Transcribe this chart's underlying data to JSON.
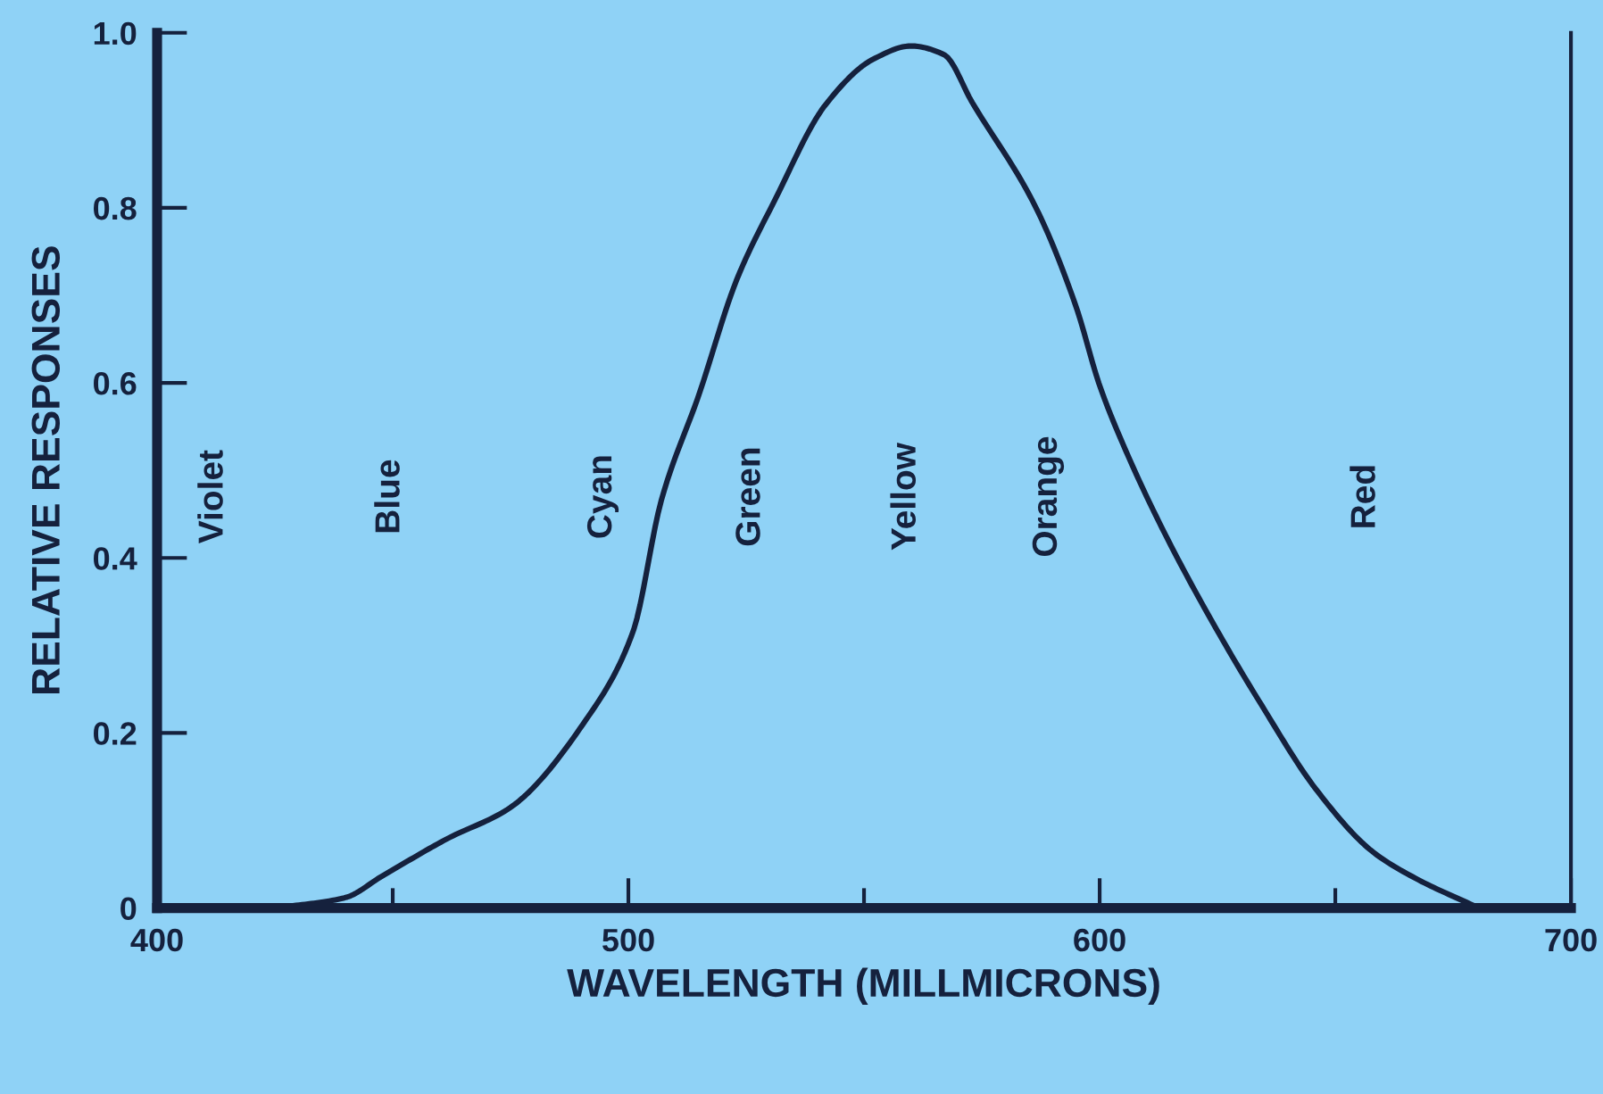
{
  "chart_data": {
    "type": "line",
    "xlabel": "WAVELENGTH (MILLMICRONS)",
    "ylabel": "RELATIVE RESPONSES",
    "x": [
      425,
      440,
      447.6,
      461.5,
      475,
      491,
      501,
      507,
      515,
      523,
      531,
      542,
      552,
      560,
      567,
      573,
      586.5,
      595,
      600,
      606,
      614,
      624,
      634,
      646,
      658,
      667,
      680.5
    ],
    "series": [
      {
        "color": "#15213d",
        "values": [
          0,
          0.012,
          0.036,
          0.079,
          0.115,
          0.215,
          0.316,
          0.466,
          0.587,
          0.718,
          0.808,
          0.919,
          0.97,
          0.985,
          0.975,
          0.92,
          0.8,
          0.687,
          0.597,
          0.517,
          0.426,
          0.326,
          0.235,
          0.135,
          0.064,
          0.034,
          0
        ]
      }
    ],
    "xlim": [
      400,
      700
    ],
    "ylim": [
      0,
      1.0
    ],
    "xticks": [
      400,
      {
        "value": 450,
        "label": null
      },
      500,
      {
        "value": 550,
        "label": null
      },
      600,
      {
        "value": 650,
        "label": null
      },
      700
    ],
    "yticks": [
      0,
      0.2,
      0.4,
      0.6,
      0.8,
      {
        "value": 1.0,
        "label": "1.0"
      }
    ],
    "annotations": [
      "Violet",
      "Blue",
      "Cyan",
      "Green",
      "Yellow",
      "Orange",
      "Red"
    ],
    "grid": false,
    "legend": false,
    "marker": "none",
    "line_style": "solid"
  }
}
